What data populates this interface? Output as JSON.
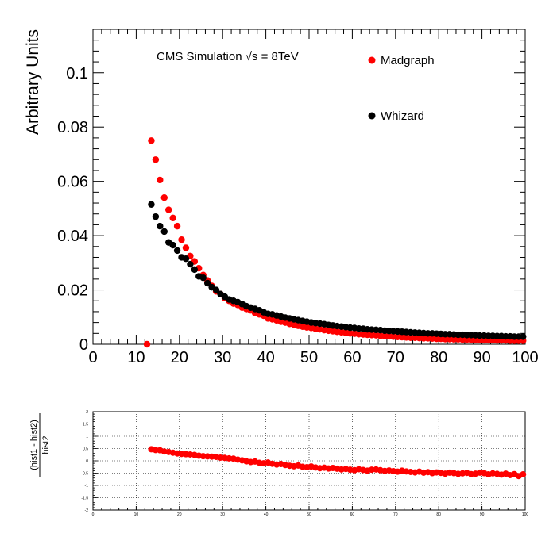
{
  "chart_data": [
    {
      "type": "scatter",
      "ylabel": "Arbitrary Units",
      "xlabel": "",
      "annotation": "CMS Simulation √s = 8TeV",
      "xlim": [
        0,
        100
      ],
      "ylim": [
        0,
        0.116
      ],
      "x_ticks": [
        "0",
        "10",
        "20",
        "30",
        "40",
        "50",
        "60",
        "70",
        "80",
        "90",
        "100"
      ],
      "y_ticks": [
        "0",
        "0.02",
        "0.04",
        "0.06",
        "0.08",
        "0.1"
      ],
      "legend_placement": "top-right",
      "series": [
        {
          "name": "Madgraph",
          "color": "#ff0000",
          "x": [
            12.5,
            13.5,
            14.5,
            15.5,
            16.5,
            17.5,
            18.5,
            19.5,
            20.5,
            21.5,
            22.5,
            23.5,
            24.5,
            25.5,
            26.5,
            27.5,
            28.5,
            29.5,
            30.5,
            31.5,
            32.5,
            33.5,
            34.5,
            35.5,
            36.5,
            37.5,
            38.5,
            39.5,
            40.5,
            41.5,
            42.5,
            43.5,
            44.5,
            45.5,
            46.5,
            47.5,
            48.5,
            49.5,
            50.5,
            51.5,
            52.5,
            53.5,
            54.5,
            55.5,
            56.5,
            57.5,
            58.5,
            59.5,
            60.5,
            61.5,
            62.5,
            63.5,
            64.5,
            65.5,
            66.5,
            67.5,
            68.5,
            69.5,
            70.5,
            71.5,
            72.5,
            73.5,
            74.5,
            75.5,
            76.5,
            77.5,
            78.5,
            79.5,
            80.5,
            81.5,
            82.5,
            83.5,
            84.5,
            85.5,
            86.5,
            87.5,
            88.5,
            89.5,
            90.5,
            91.5,
            92.5,
            93.5,
            94.5,
            95.5,
            96.5,
            97.5,
            98.5,
            99.5
          ],
          "y": [
            0.0,
            0.075,
            0.068,
            0.0605,
            0.054,
            0.0495,
            0.0465,
            0.0435,
            0.0385,
            0.0355,
            0.0325,
            0.0305,
            0.028,
            0.0255,
            0.0235,
            0.0215,
            0.0195,
            0.0185,
            0.017,
            0.016,
            0.015,
            0.0145,
            0.0135,
            0.013,
            0.0125,
            0.0115,
            0.011,
            0.0105,
            0.0095,
            0.0092,
            0.0088,
            0.0083,
            0.008,
            0.0075,
            0.0072,
            0.0068,
            0.0065,
            0.0062,
            0.006,
            0.0057,
            0.0055,
            0.0052,
            0.005,
            0.0048,
            0.0046,
            0.0044,
            0.0042,
            0.004,
            0.0039,
            0.0037,
            0.0036,
            0.0035,
            0.0034,
            0.0033,
            0.0031,
            0.003,
            0.0029,
            0.0028,
            0.0027,
            0.0026,
            0.0025,
            0.0024,
            0.0024,
            0.0023,
            0.0022,
            0.0022,
            0.0021,
            0.002,
            0.002,
            0.0019,
            0.0019,
            0.0018,
            0.0018,
            0.0017,
            0.0017,
            0.0016,
            0.0016,
            0.0016,
            0.0015,
            0.0015,
            0.0015,
            0.0014,
            0.0014,
            0.0014,
            0.0013,
            0.0013,
            0.0013,
            0.0013
          ]
        },
        {
          "name": "Whizard",
          "color": "#000000",
          "x": [
            13.5,
            14.5,
            15.5,
            16.5,
            17.5,
            18.5,
            19.5,
            20.5,
            21.5,
            22.5,
            23.5,
            24.5,
            25.5,
            26.5,
            27.5,
            28.5,
            29.5,
            30.5,
            31.5,
            32.5,
            33.5,
            34.5,
            35.5,
            36.5,
            37.5,
            38.5,
            39.5,
            40.5,
            41.5,
            42.5,
            43.5,
            44.5,
            45.5,
            46.5,
            47.5,
            48.5,
            49.5,
            50.5,
            51.5,
            52.5,
            53.5,
            54.5,
            55.5,
            56.5,
            57.5,
            58.5,
            59.5,
            60.5,
            61.5,
            62.5,
            63.5,
            64.5,
            65.5,
            66.5,
            67.5,
            68.5,
            69.5,
            70.5,
            71.5,
            72.5,
            73.5,
            74.5,
            75.5,
            76.5,
            77.5,
            78.5,
            79.5,
            80.5,
            81.5,
            82.5,
            83.5,
            84.5,
            85.5,
            86.5,
            87.5,
            88.5,
            89.5,
            90.5,
            91.5,
            92.5,
            93.5,
            94.5,
            95.5,
            96.5,
            97.5,
            98.5,
            99.5
          ],
          "y": [
            0.0515,
            0.047,
            0.0435,
            0.0415,
            0.0375,
            0.0365,
            0.0345,
            0.032,
            0.0315,
            0.0295,
            0.0275,
            0.025,
            0.0245,
            0.0225,
            0.021,
            0.02,
            0.0185,
            0.0175,
            0.0165,
            0.016,
            0.0155,
            0.0148,
            0.014,
            0.0135,
            0.013,
            0.0125,
            0.0118,
            0.0112,
            0.011,
            0.0106,
            0.0102,
            0.0098,
            0.0095,
            0.0092,
            0.0089,
            0.0086,
            0.0083,
            0.008,
            0.0078,
            0.0076,
            0.0074,
            0.0071,
            0.0069,
            0.0067,
            0.0065,
            0.0063,
            0.0061,
            0.006,
            0.0058,
            0.0057,
            0.0055,
            0.0054,
            0.0053,
            0.0052,
            0.005,
            0.0049,
            0.0048,
            0.0047,
            0.0046,
            0.0045,
            0.0044,
            0.0043,
            0.0042,
            0.0041,
            0.004,
            0.004,
            0.0039,
            0.0038,
            0.0037,
            0.0037,
            0.0036,
            0.0035,
            0.0035,
            0.0034,
            0.0034,
            0.0033,
            0.0032,
            0.0032,
            0.0031,
            0.0031,
            0.003,
            0.003,
            0.0029,
            0.0029,
            0.0028,
            0.0028,
            0.0028
          ]
        }
      ]
    },
    {
      "type": "scatter",
      "ylabel": "(hist1 - hist2) / hist2",
      "ylabel_numerator": "(hist1 - hist2)",
      "ylabel_denominator": "hist2",
      "xlabel": "",
      "xlim": [
        0,
        100
      ],
      "ylim": [
        -2,
        2
      ],
      "grid": true,
      "x_ticks": [
        "0",
        "10",
        "20",
        "30",
        "40",
        "50",
        "60",
        "70",
        "80",
        "90",
        "100"
      ],
      "y_ticks": [
        "-2",
        "-1.5",
        "-1",
        "-0.5",
        "0",
        "0.5",
        "1",
        "1.5",
        "2"
      ],
      "series": [
        {
          "name": "",
          "color": "#ff0000",
          "x": [
            13.5,
            14.5,
            15.5,
            16.5,
            17.5,
            18.5,
            19.5,
            20.5,
            21.5,
            22.5,
            23.5,
            24.5,
            25.5,
            26.5,
            27.5,
            28.5,
            29.5,
            30.5,
            31.5,
            32.5,
            33.5,
            34.5,
            35.5,
            36.5,
            37.5,
            38.5,
            39.5,
            40.5,
            41.5,
            42.5,
            43.5,
            44.5,
            45.5,
            46.5,
            47.5,
            48.5,
            49.5,
            50.5,
            51.5,
            52.5,
            53.5,
            54.5,
            55.5,
            56.5,
            57.5,
            58.5,
            59.5,
            60.5,
            61.5,
            62.5,
            63.5,
            64.5,
            65.5,
            66.5,
            67.5,
            68.5,
            69.5,
            70.5,
            71.5,
            72.5,
            73.5,
            74.5,
            75.5,
            76.5,
            77.5,
            78.5,
            79.5,
            80.5,
            81.5,
            82.5,
            83.5,
            84.5,
            85.5,
            86.5,
            87.5,
            88.5,
            89.5,
            90.5,
            91.5,
            92.5,
            93.5,
            94.5,
            95.5,
            96.5,
            97.5,
            98.5,
            99.5
          ],
          "y": [
            0.47,
            0.44,
            0.43,
            0.38,
            0.36,
            0.33,
            0.3,
            0.28,
            0.27,
            0.26,
            0.24,
            0.21,
            0.19,
            0.18,
            0.17,
            0.16,
            0.13,
            0.12,
            0.1,
            0.09,
            0.05,
            0.02,
            -0.02,
            -0.05,
            -0.03,
            -0.08,
            -0.1,
            -0.07,
            -0.12,
            -0.15,
            -0.13,
            -0.17,
            -0.2,
            -0.22,
            -0.19,
            -0.24,
            -0.26,
            -0.23,
            -0.27,
            -0.3,
            -0.28,
            -0.31,
            -0.29,
            -0.32,
            -0.35,
            -0.33,
            -0.36,
            -0.38,
            -0.34,
            -0.37,
            -0.4,
            -0.36,
            -0.35,
            -0.38,
            -0.41,
            -0.39,
            -0.42,
            -0.44,
            -0.4,
            -0.43,
            -0.45,
            -0.47,
            -0.44,
            -0.48,
            -0.46,
            -0.5,
            -0.47,
            -0.49,
            -0.52,
            -0.48,
            -0.5,
            -0.53,
            -0.51,
            -0.49,
            -0.54,
            -0.52,
            -0.48,
            -0.5,
            -0.55,
            -0.51,
            -0.53,
            -0.56,
            -0.52,
            -0.58,
            -0.54,
            -0.62,
            -0.55
          ]
        }
      ]
    }
  ]
}
